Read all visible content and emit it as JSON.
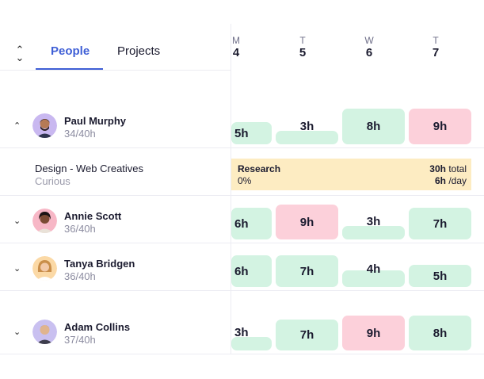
{
  "tabs": {
    "people": "People",
    "projects": "Projects"
  },
  "days": [
    {
      "letter": "M",
      "num": "4"
    },
    {
      "letter": "T",
      "num": "5"
    },
    {
      "letter": "W",
      "num": "6"
    },
    {
      "letter": "T",
      "num": "7"
    }
  ],
  "people": [
    {
      "name": "Paul Murphy",
      "hours": "34/40h",
      "cells": [
        "5h",
        "3h",
        "8h",
        "9h"
      ]
    },
    {
      "name": "Annie Scott",
      "hours": "36/40h",
      "cells": [
        "6h",
        "9h",
        "3h",
        "7h"
      ]
    },
    {
      "name": "Tanya Bridgen",
      "hours": "36/40h",
      "cells": [
        "6h",
        "7h",
        "4h",
        "5h"
      ]
    },
    {
      "name": "Adam Collins",
      "hours": "37/40h",
      "cells": [
        "3h",
        "7h",
        "9h",
        "8h"
      ]
    }
  ],
  "project": {
    "name": "Design - Web Creatives",
    "client": "Curious",
    "task": "Research",
    "percent": "0%",
    "total_hours": "30h",
    "total_suffix": "total",
    "day_hours": "6h",
    "day_suffix": "/day"
  },
  "colors": {
    "accent": "#3f5fd6",
    "green": "#d3f3e2",
    "pink": "#fcd0da",
    "research": "#fdecc2"
  }
}
